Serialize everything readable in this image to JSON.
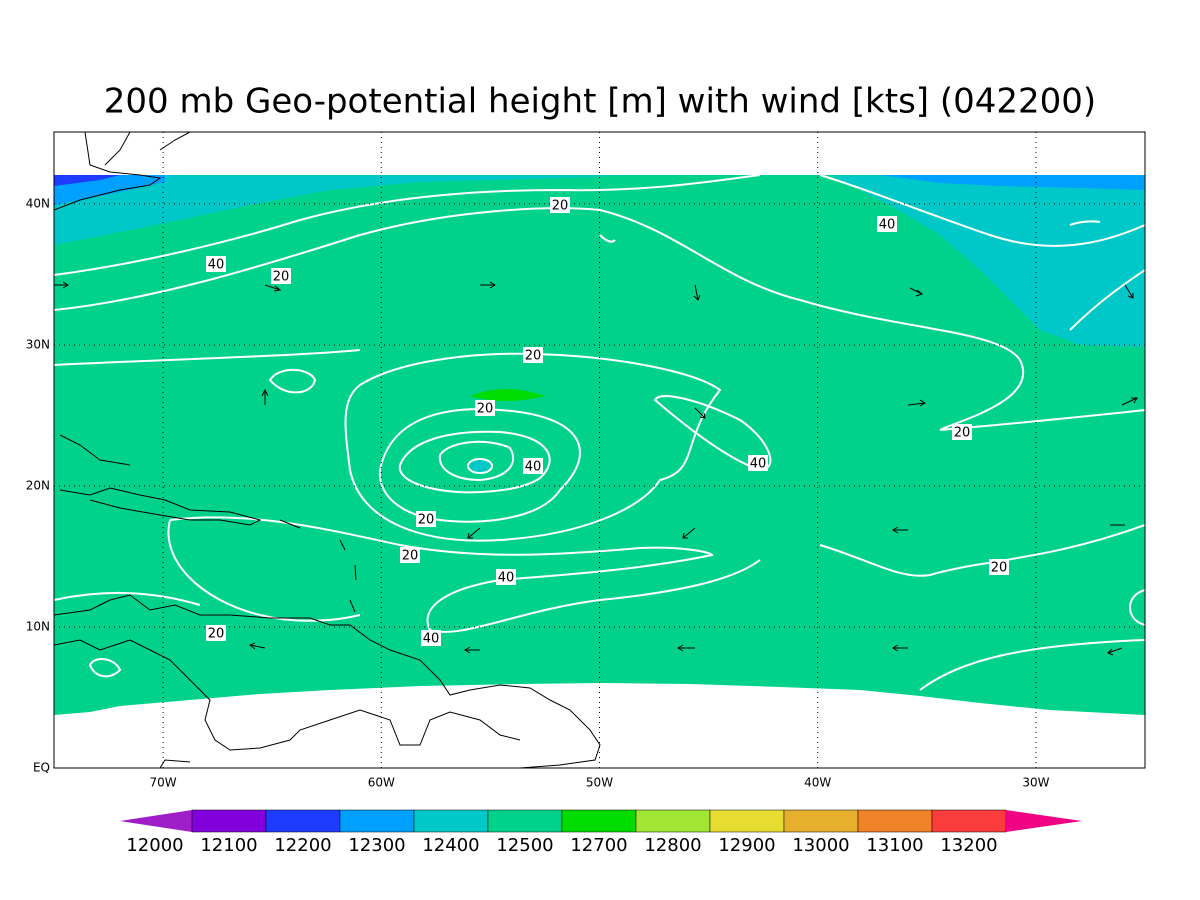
{
  "title": "200 mb Geo-potential height [m] with wind [kts] (042200)",
  "map": {
    "lon_range": [
      -75,
      -25
    ],
    "lat_range": [
      0,
      45.1
    ],
    "lon_ticks": [
      {
        "value": -70,
        "label": "70W"
      },
      {
        "value": -60,
        "label": "60W"
      },
      {
        "value": -50,
        "label": "50W"
      },
      {
        "value": -40,
        "label": "40W"
      },
      {
        "value": -30,
        "label": "30W"
      }
    ],
    "lat_ticks": [
      {
        "value": 0,
        "label": "EQ"
      },
      {
        "value": 10,
        "label": "10N"
      },
      {
        "value": 20,
        "label": "20N"
      },
      {
        "value": 30,
        "label": "30N"
      },
      {
        "value": 40,
        "label": "40N"
      }
    ],
    "contour_labels": [
      "20",
      "40",
      "40",
      "20",
      "20",
      "20",
      "40",
      "40",
      "20",
      "20",
      "20",
      "40",
      "20",
      "20",
      "40"
    ]
  },
  "colorbar": {
    "levels": [
      12000,
      12100,
      12200,
      12300,
      12400,
      12500,
      12700,
      12800,
      12900,
      13000,
      13100,
      13200
    ],
    "colors": [
      "#a01ec8",
      "#8200dc",
      "#1e3cff",
      "#00a0ff",
      "#00c8c8",
      "#00d28c",
      "#00dc00",
      "#a0e632",
      "#e6dc32",
      "#e6af2d",
      "#f08228",
      "#fa3c3c",
      "#f00082"
    ]
  }
}
